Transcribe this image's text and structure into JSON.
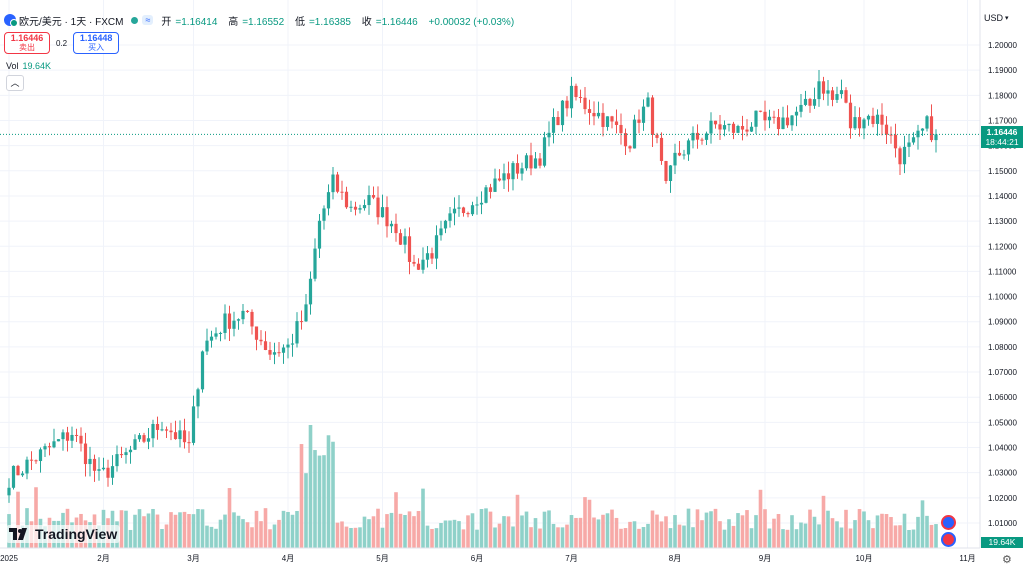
{
  "header": {
    "symbol": "欧元/美元 · 1天 · FXCM",
    "eq_label": "≈",
    "open_label": "开",
    "open": "=1.16414",
    "high_label": "高",
    "high": "=1.16552",
    "low_label": "低",
    "low": "=1.16385",
    "close_label": "收",
    "close": "=1.16446",
    "change": "+0.00032 (+0.03%)"
  },
  "trade": {
    "sell_price": "1.16446",
    "sell_label": "卖出",
    "spread": "0.2",
    "buy_price": "1.16448",
    "buy_label": "买入"
  },
  "volume": {
    "label": "Vol",
    "value": "19.64K"
  },
  "currency": "USD",
  "price_tag": {
    "price": "1.16446",
    "countdown": "18:44:21"
  },
  "brand": "TradingView",
  "colors": {
    "up": "#26a69a",
    "down": "#ef5350",
    "vol_up": "#8fd1c9",
    "vol_down": "#f7a9a7",
    "last": "#089981"
  },
  "chart_data": {
    "type": "candlestick",
    "title": "EUR/USD 1D FXCM",
    "y_ticks": [
      "1.20000",
      "1.19000",
      "1.18000",
      "1.17000",
      "1.16000",
      "1.15000",
      "1.14000",
      "1.13000",
      "1.12000",
      "1.11000",
      "1.10000",
      "1.09000",
      "1.08000",
      "1.07000",
      "1.06000",
      "1.05000",
      "1.04000",
      "1.03000",
      "1.02000",
      "1.01000"
    ],
    "ylim": [
      1.0,
      1.205
    ],
    "last_price": 1.16446,
    "x_ticks": [
      {
        "label": "2025",
        "day": 0
      },
      {
        "label": "2月",
        "day": 21
      },
      {
        "label": "3月",
        "day": 41
      },
      {
        "label": "4月",
        "day": 62
      },
      {
        "label": "5月",
        "day": 83
      },
      {
        "label": "6月",
        "day": 104
      },
      {
        "label": "7月",
        "day": 125
      },
      {
        "label": "8月",
        "day": 148
      },
      {
        "label": "9月",
        "day": 168
      },
      {
        "label": "10月",
        "day": 190
      },
      {
        "label": "11月",
        "day": 213
      }
    ],
    "anchors": [
      [
        0,
        1.028
      ],
      [
        6,
        1.036
      ],
      [
        14,
        1.046
      ],
      [
        20,
        1.028
      ],
      [
        28,
        1.04
      ],
      [
        34,
        1.05
      ],
      [
        40,
        1.04
      ],
      [
        43,
        1.08
      ],
      [
        48,
        1.09
      ],
      [
        52,
        1.093
      ],
      [
        58,
        1.078
      ],
      [
        62,
        1.08
      ],
      [
        66,
        1.094
      ],
      [
        69,
        1.13
      ],
      [
        72,
        1.145
      ],
      [
        76,
        1.135
      ],
      [
        80,
        1.138
      ],
      [
        86,
        1.128
      ],
      [
        90,
        1.112
      ],
      [
        94,
        1.118
      ],
      [
        98,
        1.13
      ],
      [
        104,
        1.14
      ],
      [
        108,
        1.145
      ],
      [
        112,
        1.15
      ],
      [
        118,
        1.156
      ],
      [
        122,
        1.172
      ],
      [
        125,
        1.18
      ],
      [
        130,
        1.174
      ],
      [
        134,
        1.168
      ],
      [
        138,
        1.162
      ],
      [
        140,
        1.172
      ],
      [
        142,
        1.176
      ],
      [
        144,
        1.16
      ],
      [
        146,
        1.142
      ],
      [
        148,
        1.155
      ],
      [
        152,
        1.162
      ],
      [
        157,
        1.168
      ],
      [
        162,
        1.166
      ],
      [
        166,
        1.17
      ],
      [
        170,
        1.168
      ],
      [
        174,
        1.172
      ],
      [
        178,
        1.176
      ],
      [
        180,
        1.186
      ],
      [
        183,
        1.178
      ],
      [
        185,
        1.182
      ],
      [
        187,
        1.168
      ],
      [
        190,
        1.172
      ],
      [
        194,
        1.17
      ],
      [
        198,
        1.156
      ],
      [
        201,
        1.16
      ],
      [
        204,
        1.168
      ],
      [
        206,
        1.164
      ]
    ]
  }
}
